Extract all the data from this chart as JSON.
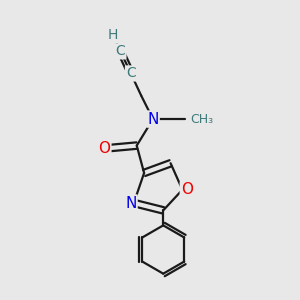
{
  "background_color": "#e8e8e8",
  "atom_colors": {
    "C": "#3d7a7a",
    "N": "#0000ee",
    "O": "#ee0000",
    "H": "#3d7a7a"
  },
  "bond_color": "#1a1a1a",
  "figsize": [
    3.0,
    3.0
  ],
  "dpi": 100
}
